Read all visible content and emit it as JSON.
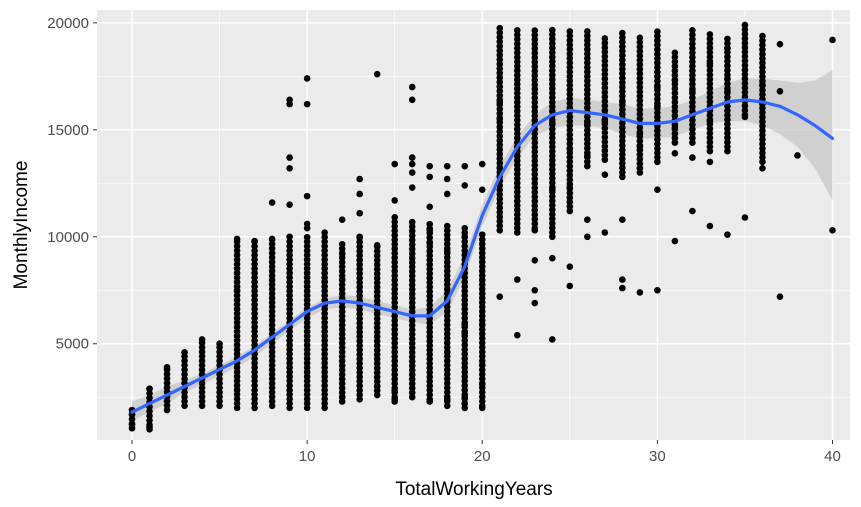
{
  "chart_data": {
    "type": "scatter",
    "xlabel": "TotalWorkingYears",
    "ylabel": "MonthlyIncome",
    "xlim": [
      -2,
      41
    ],
    "ylim": [
      500,
      20600
    ],
    "x_ticks": [
      0,
      10,
      20,
      30,
      40
    ],
    "y_ticks": [
      5000,
      10000,
      15000,
      20000
    ],
    "x_tick_labels": [
      "0",
      "10",
      "20",
      "30",
      "40"
    ],
    "y_tick_labels": [
      "5000",
      "10000",
      "15000",
      "20000"
    ],
    "grid": true,
    "legend": "none",
    "colors": {
      "panel_background": "#ebebeb",
      "grid": "#ffffff",
      "points": "#000000",
      "smooth_line": "#3366ff",
      "confidence_band": "#c8c8c8"
    },
    "columns": [
      {
        "x": 0,
        "y_min": 1050,
        "y_max": 1950
      },
      {
        "x": 1,
        "y_min": 1000,
        "y_max": 2900
      },
      {
        "x": 2,
        "y_min": 1900,
        "y_max": 3900
      },
      {
        "x": 3,
        "y_min": 2100,
        "y_max": 4600
      },
      {
        "x": 4,
        "y_min": 2100,
        "y_max": 5200
      },
      {
        "x": 5,
        "y_min": 2100,
        "y_max": 5000
      },
      {
        "x": 6,
        "y_min": 2000,
        "y_max": 9900
      },
      {
        "x": 7,
        "y_min": 2000,
        "y_max": 9800
      },
      {
        "x": 8,
        "y_min": 2100,
        "y_max": 9900
      },
      {
        "x": 9,
        "y_min": 2000,
        "y_max": 9900
      },
      {
        "x": 10,
        "y_min": 2000,
        "y_max": 10000
      },
      {
        "x": 11,
        "y_min": 2000,
        "y_max": 10000
      },
      {
        "x": 12,
        "y_min": 2300,
        "y_max": 9800
      },
      {
        "x": 13,
        "y_min": 2400,
        "y_max": 10100
      },
      {
        "x": 14,
        "y_min": 2600,
        "y_max": 9700
      },
      {
        "x": 15,
        "y_min": 2300,
        "y_max": 11000
      },
      {
        "x": 16,
        "y_min": 2500,
        "y_max": 10800
      },
      {
        "x": 17,
        "y_min": 2400,
        "y_max": 10700
      },
      {
        "x": 18,
        "y_min": 2100,
        "y_max": 10600
      },
      {
        "x": 19,
        "y_min": 2000,
        "y_max": 10600
      },
      {
        "x": 20,
        "y_min": 2100,
        "y_max": 10000
      },
      {
        "x": 21,
        "y_min": 10300,
        "y_max": 19900
      },
      {
        "x": 22,
        "y_min": 10200,
        "y_max": 19800
      },
      {
        "x": 23,
        "y_min": 10400,
        "y_max": 19800
      },
      {
        "x": 24,
        "y_min": 10000,
        "y_max": 19700
      },
      {
        "x": 25,
        "y_min": 11200,
        "y_max": 19600
      },
      {
        "x": 26,
        "y_min": 13300,
        "y_max": 19700
      },
      {
        "x": 27,
        "y_min": 13600,
        "y_max": 19300
      },
      {
        "x": 28,
        "y_min": 12800,
        "y_max": 19600
      },
      {
        "x": 29,
        "y_min": 13000,
        "y_max": 19500
      },
      {
        "x": 30,
        "y_min": 13500,
        "y_max": 19600
      },
      {
        "x": 31,
        "y_min": 14400,
        "y_max": 18800
      },
      {
        "x": 32,
        "y_min": 14400,
        "y_max": 19700
      },
      {
        "x": 33,
        "y_min": 14000,
        "y_max": 19600
      },
      {
        "x": 34,
        "y_min": 14000,
        "y_max": 19300
      },
      {
        "x": 35,
        "y_min": 15700,
        "y_max": 19700
      },
      {
        "x": 36,
        "y_min": 13500,
        "y_max": 19400
      }
    ],
    "points": [
      [
        0,
        1200
      ],
      [
        0,
        1700
      ],
      [
        0,
        1900
      ],
      [
        1,
        1100
      ],
      [
        1,
        2900
      ],
      [
        2,
        3900
      ],
      [
        3,
        4600
      ],
      [
        4,
        5200
      ],
      [
        5,
        5000
      ],
      [
        6,
        9900
      ],
      [
        6,
        7500
      ],
      [
        7,
        9800
      ],
      [
        8,
        9900
      ],
      [
        8,
        11600
      ],
      [
        9,
        10000
      ],
      [
        9,
        11500
      ],
      [
        9,
        13200
      ],
      [
        9,
        13700
      ],
      [
        9,
        16200
      ],
      [
        9,
        16400
      ],
      [
        10,
        10400
      ],
      [
        10,
        10600
      ],
      [
        10,
        11900
      ],
      [
        10,
        16200
      ],
      [
        10,
        17400
      ],
      [
        11,
        10200
      ],
      [
        11,
        7900
      ],
      [
        11,
        6800
      ],
      [
        12,
        10800
      ],
      [
        12,
        8000
      ],
      [
        12,
        2500
      ],
      [
        12,
        9200
      ],
      [
        13,
        12700
      ],
      [
        13,
        12000
      ],
      [
        13,
        11100
      ],
      [
        13,
        10000
      ],
      [
        14,
        17600
      ],
      [
        14,
        9600
      ],
      [
        14,
        3000
      ],
      [
        14,
        6400
      ],
      [
        15,
        13400
      ],
      [
        15,
        11700
      ],
      [
        15,
        2400
      ],
      [
        15,
        2800
      ],
      [
        16,
        17000
      ],
      [
        16,
        16400
      ],
      [
        16,
        13700
      ],
      [
        16,
        13400
      ],
      [
        16,
        13000
      ],
      [
        16,
        12300
      ],
      [
        17,
        13300
      ],
      [
        17,
        12800
      ],
      [
        17,
        11400
      ],
      [
        17,
        10300
      ],
      [
        17,
        9700
      ],
      [
        17,
        2300
      ],
      [
        18,
        13300
      ],
      [
        18,
        12700
      ],
      [
        18,
        12000
      ],
      [
        18,
        9300
      ],
      [
        18,
        7000
      ],
      [
        18,
        4600
      ],
      [
        18,
        2400
      ],
      [
        19,
        13300
      ],
      [
        19,
        12400
      ],
      [
        19,
        10000
      ],
      [
        19,
        5900
      ],
      [
        19,
        5500
      ],
      [
        19,
        2200
      ],
      [
        19,
        2500
      ],
      [
        20,
        13400
      ],
      [
        20,
        12200
      ],
      [
        20,
        10100
      ],
      [
        20,
        2000
      ],
      [
        20,
        5900
      ],
      [
        20,
        3100
      ],
      [
        20,
        4000
      ],
      [
        21,
        7200
      ],
      [
        21,
        13200
      ],
      [
        21,
        15500
      ],
      [
        21,
        16300
      ],
      [
        22,
        5400
      ],
      [
        22,
        8000
      ],
      [
        22,
        14000
      ],
      [
        23,
        7500
      ],
      [
        23,
        10300
      ],
      [
        23,
        8900
      ],
      [
        23,
        6900
      ],
      [
        24,
        5200
      ],
      [
        24,
        9000
      ],
      [
        24,
        12200
      ],
      [
        24,
        15300
      ],
      [
        25,
        8600
      ],
      [
        25,
        7700
      ],
      [
        25,
        12300
      ],
      [
        25,
        14100
      ],
      [
        26,
        10800
      ],
      [
        26,
        10000
      ],
      [
        26,
        13800
      ],
      [
        26,
        15300
      ],
      [
        27,
        12900
      ],
      [
        27,
        10200
      ],
      [
        27,
        15400
      ],
      [
        27,
        15900
      ],
      [
        28,
        8000
      ],
      [
        28,
        7600
      ],
      [
        28,
        10800
      ],
      [
        28,
        16300
      ],
      [
        29,
        7400
      ],
      [
        29,
        13200
      ],
      [
        29,
        14200
      ],
      [
        29,
        14800
      ],
      [
        30,
        7500
      ],
      [
        30,
        12200
      ],
      [
        30,
        16100
      ],
      [
        30,
        17000
      ],
      [
        31,
        9800
      ],
      [
        31,
        13900
      ],
      [
        31,
        15100
      ],
      [
        31,
        17300
      ],
      [
        32,
        11200
      ],
      [
        32,
        13700
      ],
      [
        32,
        15700
      ],
      [
        32,
        16800
      ],
      [
        33,
        10500
      ],
      [
        33,
        13500
      ],
      [
        33,
        15400
      ],
      [
        33,
        18100
      ],
      [
        34,
        10100
      ],
      [
        34,
        16800
      ],
      [
        34,
        17400
      ],
      [
        34,
        18800
      ],
      [
        35,
        10900
      ],
      [
        35,
        15600
      ],
      [
        35,
        17800
      ],
      [
        35,
        19900
      ],
      [
        36,
        13200
      ],
      [
        36,
        16200
      ],
      [
        36,
        17100
      ],
      [
        37,
        7200
      ],
      [
        37,
        16800
      ],
      [
        37,
        19000
      ],
      [
        38,
        13800
      ],
      [
        40,
        10300
      ],
      [
        40,
        19200
      ]
    ],
    "smooth_line": {
      "x": [
        0,
        1,
        2,
        3,
        4,
        5,
        6,
        7,
        8,
        9,
        10,
        11,
        12,
        13,
        14,
        15,
        16,
        17,
        18,
        19,
        20,
        21,
        22,
        23,
        24,
        25,
        26,
        27,
        28,
        29,
        30,
        31,
        32,
        33,
        34,
        35,
        36,
        37,
        38,
        39,
        40
      ],
      "y": [
        1800,
        2200,
        2600,
        3000,
        3400,
        3800,
        4200,
        4700,
        5300,
        5900,
        6500,
        6900,
        7000,
        6900,
        6700,
        6500,
        6300,
        6300,
        7000,
        8600,
        11000,
        12800,
        14200,
        15200,
        15700,
        15900,
        15800,
        15700,
        15500,
        15300,
        15300,
        15400,
        15700,
        16000,
        16300,
        16400,
        16300,
        16100,
        15700,
        15200,
        14600
      ],
      "band_upper": [
        2300,
        2600,
        3000,
        3300,
        3600,
        4000,
        4400,
        4900,
        5500,
        6100,
        6700,
        7100,
        7300,
        7200,
        7000,
        6800,
        6600,
        6700,
        7500,
        9100,
        11500,
        13300,
        14700,
        15700,
        16300,
        16500,
        16400,
        16300,
        16200,
        16000,
        16000,
        16100,
        16400,
        16800,
        17200,
        17400,
        17400,
        17300,
        17200,
        17300,
        17800
      ],
      "band_lower": [
        1400,
        1800,
        2200,
        2700,
        3100,
        3500,
        3900,
        4400,
        5000,
        5600,
        6200,
        6600,
        6700,
        6600,
        6400,
        6200,
        6000,
        5900,
        6500,
        8100,
        10500,
        12300,
        13700,
        14700,
        15100,
        15200,
        15200,
        15100,
        14800,
        14600,
        14600,
        14700,
        15000,
        15300,
        15400,
        15400,
        15200,
        14800,
        14200,
        13200,
        11700
      ]
    }
  }
}
